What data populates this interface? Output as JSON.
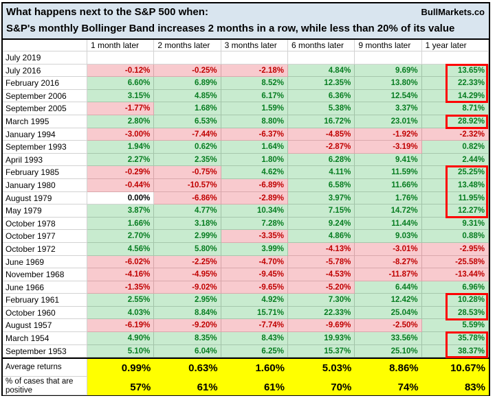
{
  "title": {
    "line1": "What happens next to the S&P 500 when:",
    "line2": "S&P's monthly Bollinger Band increases 2 months in a row, while less than 20% of its value",
    "brand": "BullMarkets.co"
  },
  "chart_data": {
    "type": "table",
    "title": "What happens next to the S&P 500 when:",
    "subtitle": "S&P's monthly Bollinger Band increases 2 months in a row, while less than 20% of its value",
    "brand": "BullMarkets.co",
    "columns": [
      "1 month later",
      "2 months later",
      "3 months later",
      "6 months later",
      "9 months later",
      "1 year later"
    ],
    "rows": [
      {
        "date": "July 2019",
        "values": [
          "",
          "",
          "",
          "",
          "",
          ""
        ]
      },
      {
        "date": "July 2016",
        "values": [
          "-0.12%",
          "-0.25%",
          "-2.18%",
          "4.84%",
          "9.69%",
          "13.65%"
        ]
      },
      {
        "date": "February 2016",
        "values": [
          "6.60%",
          "6.89%",
          "8.52%",
          "12.35%",
          "13.80%",
          "22.33%"
        ]
      },
      {
        "date": "September 2006",
        "values": [
          "3.15%",
          "4.85%",
          "6.17%",
          "6.36%",
          "12.54%",
          "14.29%"
        ]
      },
      {
        "date": "September 2005",
        "values": [
          "-1.77%",
          "1.68%",
          "1.59%",
          "5.38%",
          "3.37%",
          "8.71%"
        ]
      },
      {
        "date": "March 1995",
        "values": [
          "2.80%",
          "6.53%",
          "8.80%",
          "16.72%",
          "23.01%",
          "28.92%"
        ]
      },
      {
        "date": "January 1994",
        "values": [
          "-3.00%",
          "-7.44%",
          "-6.37%",
          "-4.85%",
          "-1.92%",
          "-2.32%"
        ]
      },
      {
        "date": "September 1993",
        "values": [
          "1.94%",
          "0.62%",
          "1.64%",
          "-2.87%",
          "-3.19%",
          "0.82%"
        ]
      },
      {
        "date": "April 1993",
        "values": [
          "2.27%",
          "2.35%",
          "1.80%",
          "6.28%",
          "9.41%",
          "2.44%"
        ]
      },
      {
        "date": "February 1985",
        "values": [
          "-0.29%",
          "-0.75%",
          "4.62%",
          "4.11%",
          "11.59%",
          "25.25%"
        ]
      },
      {
        "date": "January 1980",
        "values": [
          "-0.44%",
          "-10.57%",
          "-6.89%",
          "6.58%",
          "11.66%",
          "13.48%"
        ]
      },
      {
        "date": "August 1979",
        "values": [
          "0.00%",
          "-6.86%",
          "-2.89%",
          "3.97%",
          "1.76%",
          "11.95%"
        ]
      },
      {
        "date": "May 1979",
        "values": [
          "3.87%",
          "4.77%",
          "10.34%",
          "7.15%",
          "14.72%",
          "12.27%"
        ]
      },
      {
        "date": "October 1978",
        "values": [
          "1.66%",
          "3.18%",
          "7.28%",
          "9.24%",
          "11.44%",
          "9.31%"
        ]
      },
      {
        "date": "October 1977",
        "values": [
          "2.70%",
          "2.99%",
          "-3.35%",
          "4.86%",
          "9.03%",
          "0.88%"
        ]
      },
      {
        "date": "October 1972",
        "values": [
          "4.56%",
          "5.80%",
          "3.99%",
          "-4.13%",
          "-3.01%",
          "-2.95%"
        ]
      },
      {
        "date": "June 1969",
        "values": [
          "-6.02%",
          "-2.25%",
          "-4.70%",
          "-5.78%",
          "-8.27%",
          "-25.58%"
        ]
      },
      {
        "date": "November 1968",
        "values": [
          "-4.16%",
          "-4.95%",
          "-9.45%",
          "-4.53%",
          "-11.87%",
          "-13.44%"
        ]
      },
      {
        "date": "June 1966",
        "values": [
          "-1.35%",
          "-9.02%",
          "-9.65%",
          "-5.20%",
          "6.44%",
          "6.96%"
        ]
      },
      {
        "date": "February 1961",
        "values": [
          "2.55%",
          "2.95%",
          "4.92%",
          "7.30%",
          "12.42%",
          "10.28%"
        ]
      },
      {
        "date": "October 1960",
        "values": [
          "4.03%",
          "8.84%",
          "15.71%",
          "22.33%",
          "25.04%",
          "28.53%"
        ]
      },
      {
        "date": "August 1957",
        "values": [
          "-6.19%",
          "-9.20%",
          "-7.74%",
          "-9.69%",
          "-2.50%",
          "5.59%"
        ]
      },
      {
        "date": "March 1954",
        "values": [
          "4.90%",
          "8.35%",
          "8.43%",
          "19.93%",
          "33.56%",
          "35.78%"
        ]
      },
      {
        "date": "September 1953",
        "values": [
          "5.10%",
          "6.04%",
          "6.25%",
          "15.37%",
          "25.10%",
          "38.37%"
        ]
      }
    ],
    "summary_rows": [
      {
        "label": "Average returns",
        "label_lines": [
          "Average returns"
        ],
        "values": [
          "0.99%",
          "0.63%",
          "1.60%",
          "5.03%",
          "8.86%",
          "10.67%"
        ]
      },
      {
        "label": "% of cases that are positive",
        "label_lines": [
          "% of cases that are",
          "positive"
        ],
        "values": [
          "57%",
          "61%",
          "61%",
          "70%",
          "74%",
          "83%"
        ]
      }
    ],
    "highlight_boxes": [
      {
        "column": "1 year later",
        "from_row_index": 1,
        "to_row_index": 3,
        "from_date": "July 2016",
        "to_date": "September 2006"
      },
      {
        "column": "1 year later",
        "from_row_index": 5,
        "to_row_index": 5,
        "from_date": "March 1995",
        "to_date": "March 1995"
      },
      {
        "column": "1 year later",
        "from_row_index": 9,
        "to_row_index": 12,
        "from_date": "February 1985",
        "to_date": "May 1979"
      },
      {
        "column": "1 year later",
        "from_row_index": 19,
        "to_row_index": 20,
        "from_date": "February 1961",
        "to_date": "October 1960"
      },
      {
        "column": "1 year later",
        "from_row_index": 22,
        "to_row_index": 23,
        "from_date": "March 1954",
        "to_date": "September 1953"
      }
    ],
    "layout_hints": {
      "positive_fill": "#C8EBCF",
      "negative_fill": "#F8CACE",
      "positive_text": "#077D21",
      "negative_text": "#C00000",
      "zero_fill": "#FFFFFF",
      "summary_fill": "#FFFF00",
      "title_fill": "#D9E5EF",
      "highlight_border": "#FE0000",
      "grid_on": true
    }
  }
}
